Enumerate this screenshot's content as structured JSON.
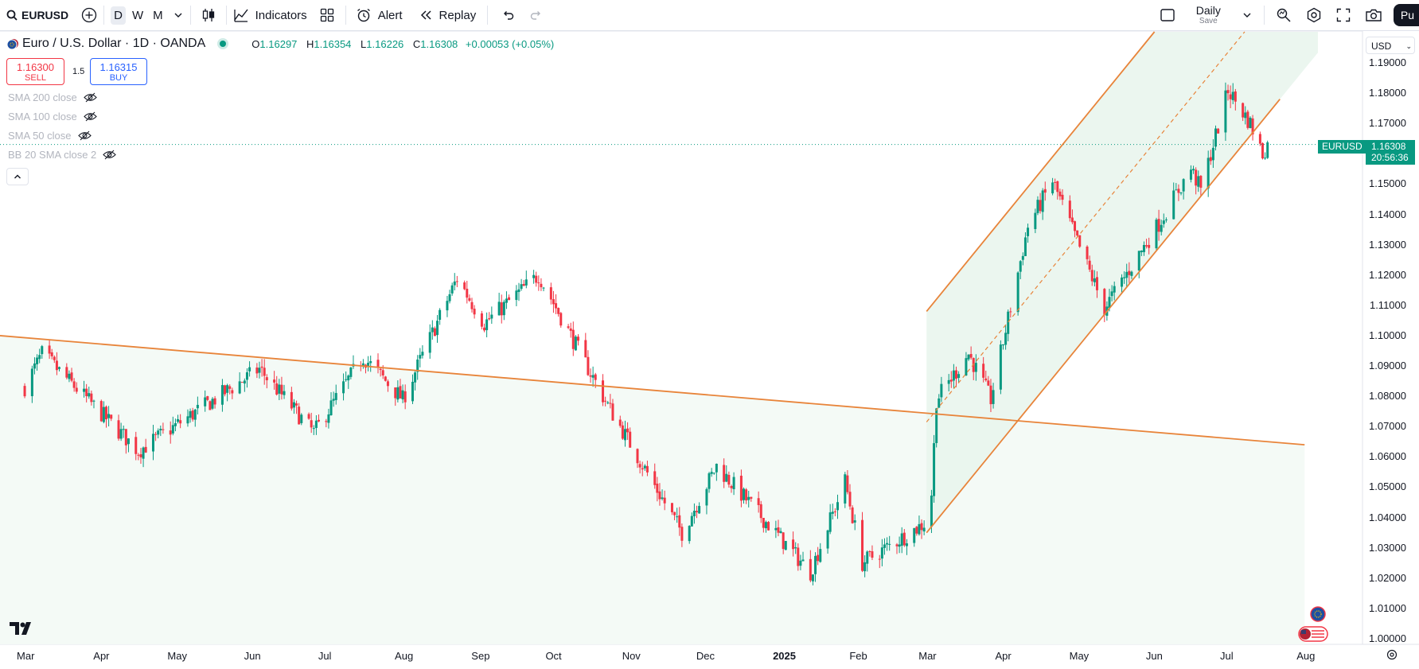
{
  "toolbar": {
    "symbol": "EURUSD",
    "intervals": [
      "D",
      "W",
      "M"
    ],
    "indicators_label": "Indicators",
    "alert_label": "Alert",
    "replay_label": "Replay",
    "layout_name": "Daily",
    "layout_sub": "Save",
    "publish_label": "Pu"
  },
  "legend": {
    "title": "Euro / U.S. Dollar · 1D · OANDA",
    "open_key": "O",
    "open": "1.16297",
    "high_key": "H",
    "high": "1.16354",
    "low_key": "L",
    "low": "1.16226",
    "close_key": "C",
    "close": "1.16308",
    "change": "+0.00053 (+0.05%)"
  },
  "trade": {
    "sell_price": "1.16300",
    "sell_label": "SELL",
    "spread": "1.5",
    "buy_price": "1.16315",
    "buy_label": "BUY"
  },
  "indicators": [
    "SMA 200 close",
    "SMA 100 close",
    "SMA 50 close",
    "BB 20 SMA close 2"
  ],
  "price_axis": {
    "currency": "USD",
    "labels": [
      "1.19000",
      "1.18000",
      "1.17000",
      "1.16000",
      "1.15000",
      "1.14000",
      "1.13000",
      "1.12000",
      "1.11000",
      "1.10000",
      "1.09000",
      "1.08000",
      "1.07000",
      "1.06000",
      "1.05000",
      "1.04000",
      "1.03000",
      "1.02000",
      "1.01000",
      "1.00000"
    ],
    "last_symbol": "EURUSD",
    "last_price": "1.16308",
    "countdown": "20:56:36"
  },
  "time_axis": {
    "labels": [
      "Mar",
      "Apr",
      "May",
      "Jun",
      "Jul",
      "Aug",
      "Sep",
      "Oct",
      "Nov",
      "Dec",
      "2025",
      "Feb",
      "Mar",
      "Apr",
      "May",
      "Jun",
      "Jul",
      "Aug"
    ]
  },
  "colors": {
    "up": "#089981",
    "down": "#f23645",
    "trendline": "#e8843a",
    "channel_fill": "#e8f5ec",
    "accent": "#2962ff"
  },
  "chart_data": {
    "type": "candlestick",
    "symbol": "EURUSD",
    "interval": "1D",
    "ylim": [
      1.0,
      1.19
    ],
    "key_points": [
      {
        "date": "2024-03-01",
        "close": 1.083
      },
      {
        "date": "2024-03-08",
        "close": 1.094
      },
      {
        "date": "2024-04-16",
        "close": 1.062
      },
      {
        "date": "2024-06-04",
        "close": 1.089
      },
      {
        "date": "2024-06-26",
        "close": 1.068
      },
      {
        "date": "2024-07-16",
        "close": 1.093
      },
      {
        "date": "2024-08-01",
        "close": 1.079
      },
      {
        "date": "2024-08-23",
        "close": 1.119
      },
      {
        "date": "2024-09-03",
        "close": 1.104
      },
      {
        "date": "2024-09-25",
        "close": 1.12
      },
      {
        "date": "2024-10-23",
        "close": 1.077
      },
      {
        "date": "2024-11-22",
        "close": 1.035
      },
      {
        "date": "2024-12-06",
        "close": 1.057
      },
      {
        "date": "2025-01-13",
        "close": 1.022
      },
      {
        "date": "2025-01-27",
        "close": 1.052
      },
      {
        "date": "2025-02-03",
        "close": 1.025
      },
      {
        "date": "2025-02-28",
        "close": 1.038
      },
      {
        "date": "2025-03-03",
        "close": 1.048
      },
      {
        "date": "2025-03-05",
        "close": 1.079
      },
      {
        "date": "2025-03-18",
        "close": 1.094
      },
      {
        "date": "2025-03-27",
        "close": 1.079
      },
      {
        "date": "2025-04-11",
        "close": 1.136
      },
      {
        "date": "2025-04-21",
        "close": 1.151
      },
      {
        "date": "2025-05-12",
        "close": 1.109
      },
      {
        "date": "2025-06-03",
        "close": 1.137
      },
      {
        "date": "2025-06-16",
        "close": 1.155
      },
      {
        "date": "2025-06-20",
        "close": 1.148
      },
      {
        "date": "2025-07-01",
        "close": 1.181
      },
      {
        "date": "2025-07-10",
        "close": 1.17
      },
      {
        "date": "2025-07-15",
        "close": 1.16
      },
      {
        "date": "2025-07-17",
        "close": 1.163
      }
    ],
    "drawings": [
      {
        "type": "trend_line",
        "from": {
          "date": "2024-02-20",
          "price": 1.1
        },
        "to": {
          "date": "2025-08-01",
          "price": 1.064
        }
      },
      {
        "type": "parallel_channel",
        "upper_from": {
          "date": "2025-03-01",
          "price": 1.108
        },
        "lower_from": {
          "date": "2025-03-01",
          "price": 1.035
        },
        "lower_to": {
          "date": "2025-07-22",
          "price": 1.178
        }
      }
    ]
  }
}
